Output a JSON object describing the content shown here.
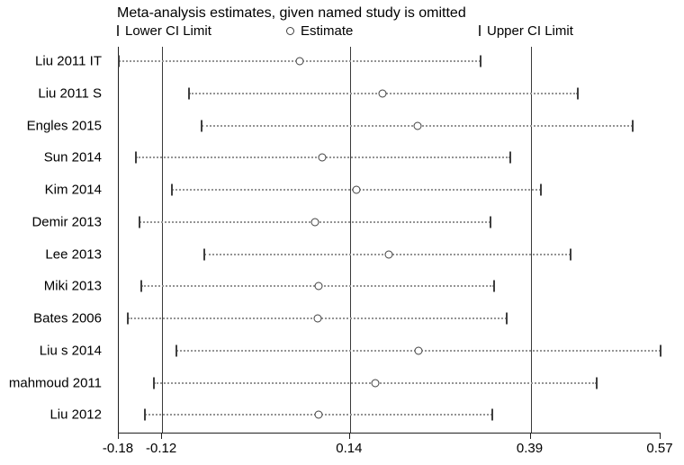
{
  "title": "Meta-analysis estimates, given named study is omitted",
  "legend": {
    "lower": "Lower CI Limit",
    "estimate": "Estimate",
    "upper": "Upper CI Limit"
  },
  "chart_data": {
    "type": "scatter",
    "subtype": "leave-one-out-sensitivity-forest-plot",
    "title": "Meta-analysis estimates, given named study is omitted",
    "orientation": "horizontal",
    "categories": [
      "Liu 2011 IT",
      "Liu 2011 S",
      "Engles 2015",
      "Sun 2014",
      "Kim 2014",
      "Demir 2013",
      "Lee 2013",
      "Miki 2013",
      "Bates 2006",
      "Liu s 2014",
      "mahmoud 2011",
      "Liu 2012"
    ],
    "series": [
      {
        "name": "Lower CI Limit",
        "values": [
          -0.18,
          -0.083,
          -0.065,
          -0.156,
          -0.107,
          -0.151,
          -0.062,
          -0.149,
          -0.167,
          -0.1,
          -0.131,
          -0.144
        ]
      },
      {
        "name": "Estimate",
        "values": [
          0.07,
          0.185,
          0.233,
          0.102,
          0.149,
          0.092,
          0.194,
          0.096,
          0.095,
          0.235,
          0.175,
          0.096
        ]
      },
      {
        "name": "Upper CI Limit",
        "values": [
          0.321,
          0.455,
          0.532,
          0.362,
          0.404,
          0.335,
          0.446,
          0.34,
          0.357,
          0.57,
          0.481,
          0.337
        ]
      }
    ],
    "xlim": [
      -0.18,
      0.57
    ],
    "x_ticks": [
      -0.18,
      -0.12,
      0.14,
      0.39,
      0.57
    ],
    "x_tick_labels": [
      "-0.18",
      "-0.12",
      "0.14",
      "0.39",
      "0.57"
    ],
    "reference_lines": [
      -0.12,
      0.14,
      0.39
    ],
    "grid": false,
    "legend_position": "top",
    "marker_color": "#3f3f3f",
    "dotted_line_color": "#949494",
    "axis_color": "#1f1f1f"
  }
}
